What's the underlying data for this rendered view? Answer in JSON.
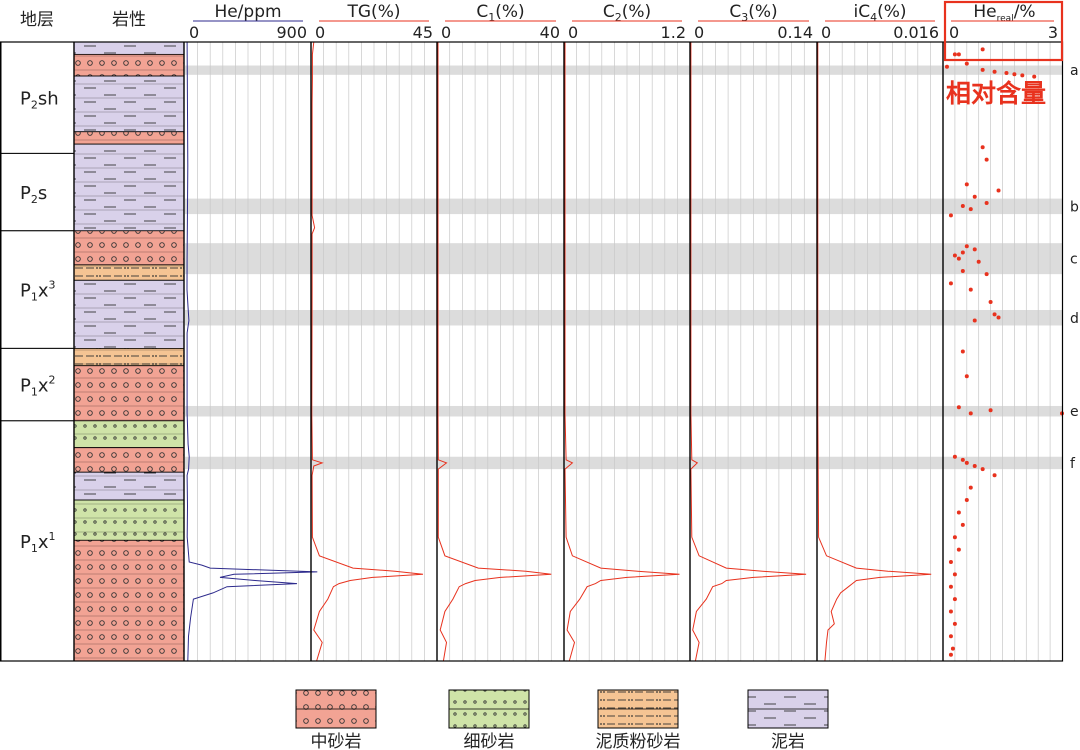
{
  "colors": {
    "sand_medium": "#f2a394",
    "sand_fine": "#cfe3a8",
    "silt_muddy": "#f5c493",
    "mud": "#d9d1ea",
    "band": "#dcdcdc",
    "he_line": "#2d2a8c",
    "gas_line": "#e8321e",
    "red": "#e8321e",
    "frame": "#000000"
  },
  "header": {
    "strat": "地层",
    "lith": "岩性"
  },
  "annotation": "相对含量",
  "legend": [
    {
      "type": "sand_medium",
      "label": "中砂岩"
    },
    {
      "type": "sand_fine",
      "label": "细砂岩"
    },
    {
      "type": "silt_muddy",
      "label": "泥质粉砂岩"
    },
    {
      "type": "mud",
      "label": "泥岩"
    }
  ],
  "chart_data": {
    "type": "well-log",
    "depth_axis": "relative (0 = top, 1 = bottom)",
    "formations": [
      {
        "base": "P",
        "sub": "2",
        "rest": "sh",
        "sup": "",
        "top": 0.0,
        "bottom": 0.18
      },
      {
        "base": "P",
        "sub": "2",
        "rest": "s",
        "sup": "",
        "top": 0.18,
        "bottom": 0.305
      },
      {
        "base": "P",
        "sub": "1",
        "rest": "x",
        "sup": "3",
        "top": 0.305,
        "bottom": 0.495
      },
      {
        "base": "P",
        "sub": "1",
        "rest": "x",
        "sup": "2",
        "top": 0.495,
        "bottom": 0.612
      },
      {
        "base": "P",
        "sub": "1",
        "rest": "x",
        "sup": "1",
        "top": 0.612,
        "bottom": 1.0
      }
    ],
    "lithology": [
      {
        "top": 0.0,
        "bottom": 0.02,
        "type": "mud"
      },
      {
        "top": 0.02,
        "bottom": 0.055,
        "type": "sand_medium"
      },
      {
        "top": 0.055,
        "bottom": 0.145,
        "type": "mud"
      },
      {
        "top": 0.145,
        "bottom": 0.165,
        "type": "sand_medium"
      },
      {
        "top": 0.165,
        "bottom": 0.305,
        "type": "mud"
      },
      {
        "top": 0.305,
        "bottom": 0.36,
        "type": "sand_medium"
      },
      {
        "top": 0.36,
        "bottom": 0.385,
        "type": "silt_muddy"
      },
      {
        "top": 0.385,
        "bottom": 0.495,
        "type": "mud"
      },
      {
        "top": 0.495,
        "bottom": 0.523,
        "type": "silt_muddy"
      },
      {
        "top": 0.523,
        "bottom": 0.612,
        "type": "sand_medium"
      },
      {
        "top": 0.612,
        "bottom": 0.655,
        "type": "sand_fine"
      },
      {
        "top": 0.655,
        "bottom": 0.695,
        "type": "sand_medium"
      },
      {
        "top": 0.695,
        "bottom": 0.74,
        "type": "mud"
      },
      {
        "top": 0.74,
        "bottom": 0.805,
        "type": "sand_fine"
      },
      {
        "top": 0.805,
        "bottom": 1.0,
        "type": "sand_medium"
      }
    ],
    "bands": [
      {
        "label": "a",
        "top": 0.038,
        "bottom": 0.053
      },
      {
        "label": "b",
        "top": 0.253,
        "bottom": 0.278
      },
      {
        "label": "c",
        "top": 0.325,
        "bottom": 0.375
      },
      {
        "label": "d",
        "top": 0.433,
        "bottom": 0.458
      },
      {
        "label": "e",
        "top": 0.588,
        "bottom": 0.605
      },
      {
        "label": "f",
        "top": 0.67,
        "bottom": 0.69
      }
    ],
    "tracks": [
      {
        "key": "he",
        "title": "He/ppm",
        "min": "0",
        "max": "900",
        "xmin": 0,
        "xmax": 900,
        "points": [
          [
            0,
            15
          ],
          [
            0.2,
            20
          ],
          [
            0.35,
            15
          ],
          [
            0.4,
            14
          ],
          [
            0.43,
            22
          ],
          [
            0.45,
            28
          ],
          [
            0.47,
            15
          ],
          [
            0.6,
            15
          ],
          [
            0.65,
            22
          ],
          [
            0.67,
            30
          ],
          [
            0.69,
            26
          ],
          [
            0.7,
            15
          ],
          [
            0.75,
            18
          ],
          [
            0.8,
            16
          ],
          [
            0.84,
            30
          ],
          [
            0.845,
            120
          ],
          [
            0.85,
            180
          ],
          [
            0.856,
            1000
          ],
          [
            0.86,
            350
          ],
          [
            0.865,
            250
          ],
          [
            0.87,
            500
          ],
          [
            0.875,
            800
          ],
          [
            0.88,
            300
          ],
          [
            0.89,
            200
          ],
          [
            0.9,
            60
          ],
          [
            0.93,
            40
          ],
          [
            0.96,
            25
          ],
          [
            1.0,
            20
          ]
        ]
      },
      {
        "key": "tg",
        "title": "TG(%)",
        "min": "0",
        "max": "45",
        "xmin": 0,
        "xmax": 45,
        "points": [
          [
            0,
            1
          ],
          [
            0.02,
            0.5
          ],
          [
            0.06,
            0.5
          ],
          [
            0.1,
            0.4
          ],
          [
            0.2,
            0.4
          ],
          [
            0.28,
            0.4
          ],
          [
            0.3,
            1.3
          ],
          [
            0.31,
            0.4
          ],
          [
            0.4,
            0.4
          ],
          [
            0.6,
            0.3
          ],
          [
            0.675,
            0.5
          ],
          [
            0.68,
            4
          ],
          [
            0.685,
            1
          ],
          [
            0.7,
            0.4
          ],
          [
            0.8,
            0.5
          ],
          [
            0.83,
            3
          ],
          [
            0.85,
            15
          ],
          [
            0.855,
            30
          ],
          [
            0.86,
            40
          ],
          [
            0.865,
            22
          ],
          [
            0.87,
            14
          ],
          [
            0.875,
            10
          ],
          [
            0.88,
            8
          ],
          [
            0.9,
            6
          ],
          [
            0.92,
            3
          ],
          [
            0.95,
            1
          ],
          [
            0.97,
            4
          ],
          [
            1.0,
            2
          ]
        ]
      },
      {
        "key": "c1",
        "title": "C1(%)",
        "min": "0",
        "max": "40",
        "xmin": 0,
        "xmax": 40,
        "points": [
          [
            0,
            0.3
          ],
          [
            0.3,
            0.3
          ],
          [
            0.6,
            0.3
          ],
          [
            0.675,
            0.4
          ],
          [
            0.68,
            3
          ],
          [
            0.69,
            0.4
          ],
          [
            0.8,
            0.4
          ],
          [
            0.83,
            2.5
          ],
          [
            0.85,
            13
          ],
          [
            0.855,
            28
          ],
          [
            0.86,
            36
          ],
          [
            0.865,
            20
          ],
          [
            0.87,
            12
          ],
          [
            0.875,
            9
          ],
          [
            0.88,
            7
          ],
          [
            0.9,
            5
          ],
          [
            0.92,
            2.5
          ],
          [
            0.95,
            1
          ],
          [
            0.97,
            3
          ],
          [
            1.0,
            2
          ]
        ]
      },
      {
        "key": "c2",
        "title": "C2(%)",
        "min": "0",
        "max": "1.2",
        "xmin": 0,
        "xmax": 1.2,
        "points": [
          [
            0,
            0.01
          ],
          [
            0.3,
            0.01
          ],
          [
            0.6,
            0.01
          ],
          [
            0.675,
            0.02
          ],
          [
            0.68,
            0.08
          ],
          [
            0.69,
            0.01
          ],
          [
            0.8,
            0.02
          ],
          [
            0.83,
            0.08
          ],
          [
            0.85,
            0.35
          ],
          [
            0.855,
            0.7
          ],
          [
            0.86,
            1.1
          ],
          [
            0.865,
            0.6
          ],
          [
            0.87,
            0.35
          ],
          [
            0.875,
            0.3
          ],
          [
            0.88,
            0.22
          ],
          [
            0.9,
            0.15
          ],
          [
            0.92,
            0.06
          ],
          [
            0.95,
            0.03
          ],
          [
            0.97,
            0.1
          ],
          [
            1.0,
            0.05
          ]
        ]
      },
      {
        "key": "c3",
        "title": "C3(%)",
        "min": "0",
        "max": "0.14",
        "xmin": 0,
        "xmax": 0.14,
        "points": [
          [
            0,
            0.001
          ],
          [
            0.3,
            0.001
          ],
          [
            0.6,
            0.001
          ],
          [
            0.675,
            0.002
          ],
          [
            0.68,
            0.008
          ],
          [
            0.69,
            0.001
          ],
          [
            0.8,
            0.002
          ],
          [
            0.83,
            0.01
          ],
          [
            0.85,
            0.04
          ],
          [
            0.855,
            0.08
          ],
          [
            0.86,
            0.128
          ],
          [
            0.865,
            0.07
          ],
          [
            0.87,
            0.04
          ],
          [
            0.875,
            0.035
          ],
          [
            0.88,
            0.025
          ],
          [
            0.9,
            0.018
          ],
          [
            0.92,
            0.007
          ],
          [
            0.95,
            0.003
          ],
          [
            0.97,
            0.01
          ],
          [
            1.0,
            0.006
          ]
        ]
      },
      {
        "key": "ic4",
        "title": "iC4(%)",
        "min": "0",
        "max": "0.016",
        "xmin": 0,
        "xmax": 0.016,
        "points": [
          [
            0,
            0.0001
          ],
          [
            0.6,
            0.0001
          ],
          [
            0.8,
            0.0002
          ],
          [
            0.83,
            0.0012
          ],
          [
            0.85,
            0.005
          ],
          [
            0.855,
            0.009
          ],
          [
            0.86,
            0.0145
          ],
          [
            0.865,
            0.008
          ],
          [
            0.87,
            0.005
          ],
          [
            0.875,
            0.0045
          ],
          [
            0.88,
            0.004
          ],
          [
            0.89,
            0.003
          ],
          [
            0.9,
            0.0025
          ],
          [
            0.92,
            0.0018
          ],
          [
            0.94,
            0.0022
          ],
          [
            0.95,
            0.0014
          ],
          [
            0.97,
            0.0012
          ],
          [
            1.0,
            0.001
          ]
        ]
      }
    ],
    "he_real": {
      "title": "He",
      "title_sub": "real",
      "title_suffix": "/%",
      "min": "0",
      "max": "3",
      "xmin": 0,
      "xmax": 3,
      "points": [
        [
          0.02,
          0.3
        ],
        [
          0.02,
          0.4
        ],
        [
          0.035,
          0.6
        ],
        [
          0.045,
          1.0
        ],
        [
          0.048,
          1.3
        ],
        [
          0.05,
          1.6
        ],
        [
          0.052,
          1.8
        ],
        [
          0.054,
          2.0
        ],
        [
          0.056,
          2.3
        ],
        [
          0.04,
          0.1
        ],
        [
          0.012,
          1.0
        ],
        [
          0.17,
          1.0
        ],
        [
          0.19,
          1.1
        ],
        [
          0.23,
          0.6
        ],
        [
          0.24,
          1.4
        ],
        [
          0.25,
          0.8
        ],
        [
          0.26,
          1.1
        ],
        [
          0.265,
          0.5
        ],
        [
          0.27,
          0.7
        ],
        [
          0.28,
          0.2
        ],
        [
          0.33,
          0.6
        ],
        [
          0.335,
          0.8
        ],
        [
          0.34,
          0.5
        ],
        [
          0.345,
          0.3
        ],
        [
          0.35,
          0.4
        ],
        [
          0.355,
          0.9
        ],
        [
          0.37,
          0.5
        ],
        [
          0.375,
          1.1
        ],
        [
          0.39,
          0.2
        ],
        [
          0.4,
          0.7
        ],
        [
          0.42,
          1.2
        ],
        [
          0.44,
          1.3
        ],
        [
          0.445,
          1.4
        ],
        [
          0.45,
          0.8
        ],
        [
          0.5,
          0.5
        ],
        [
          0.54,
          0.6
        ],
        [
          0.59,
          0.4
        ],
        [
          0.6,
          0.7
        ],
        [
          0.595,
          1.2
        ],
        [
          0.6,
          3.0
        ],
        [
          0.67,
          0.3
        ],
        [
          0.675,
          0.5
        ],
        [
          0.68,
          0.6
        ],
        [
          0.685,
          0.8
        ],
        [
          0.69,
          1.0
        ],
        [
          0.7,
          1.3
        ],
        [
          0.72,
          0.7
        ],
        [
          0.74,
          0.6
        ],
        [
          0.76,
          0.4
        ],
        [
          0.78,
          0.5
        ],
        [
          0.8,
          0.3
        ],
        [
          0.82,
          0.4
        ],
        [
          0.84,
          0.2
        ],
        [
          0.86,
          0.3
        ],
        [
          0.88,
          0.2
        ],
        [
          0.9,
          0.3
        ],
        [
          0.92,
          0.2
        ],
        [
          0.94,
          0.3
        ],
        [
          0.96,
          0.2
        ],
        [
          0.98,
          0.25
        ],
        [
          0.99,
          0.2
        ]
      ]
    }
  }
}
